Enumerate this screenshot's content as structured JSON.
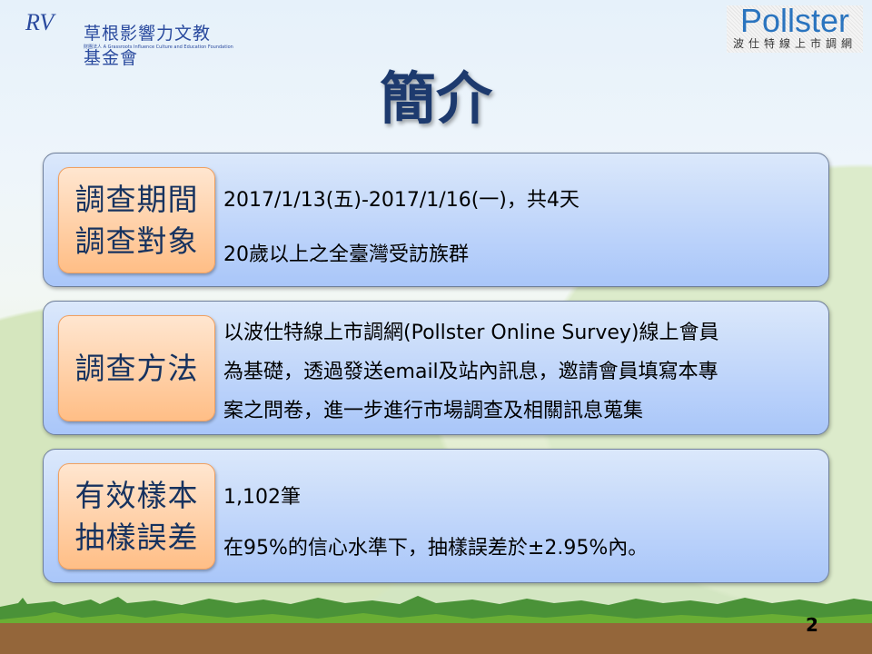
{
  "header": {
    "logo_left": {
      "mark": "RV",
      "name": "草根影響力文教基金會",
      "subtitle": "財團法人 A Grassroots Influence Culture and Education Foundation"
    },
    "logo_right": {
      "mark": "Pollster",
      "subtitle": "波仕特線上市調網"
    }
  },
  "title": "簡介",
  "panels": [
    {
      "label": [
        "調查期間",
        "調查對象"
      ],
      "lines": [
        "2017/1/13(五)-2017/1/16(一)，共4天",
        "20歲以上之全臺灣受訪族群"
      ]
    },
    {
      "label": [
        "調查方法"
      ],
      "lines": [
        "以波仕特線上市調網(Pollster Online Survey)線上會員",
        "為基礎，透過發送email及站內訊息，邀請會員填寫本專",
        "案之問卷，進一步進行市場調查及相關訊息蒐集"
      ]
    },
    {
      "label": [
        "有效樣本",
        "抽樣誤差"
      ],
      "lines": [
        "1,102筆",
        "在95%的信心水準下，抽樣誤差於±2.95%內。"
      ]
    }
  ],
  "page_number": "2"
}
